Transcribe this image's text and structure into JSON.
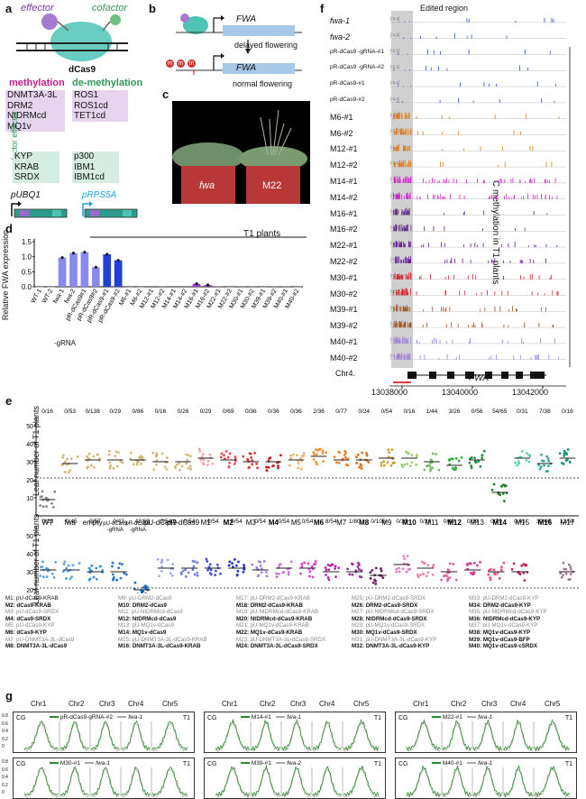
{
  "panel_a": {
    "label": "a",
    "effector": "effector",
    "cofactor": "cofactor",
    "dcas9": "dCas9",
    "methylation_title": "methylation",
    "demethylation_title": "de-methylation",
    "methylation_items": [
      "DNMT3A-3L",
      "DRM2",
      "NtDRMcd",
      "MQ1v"
    ],
    "demethylation_items": [
      "ROS1",
      "ROS1cd",
      "TET1cd"
    ],
    "cofactor_effector_label": "cofactor effector",
    "cofactor_items_left": [
      "KYP",
      "KRAB",
      "SRDX"
    ],
    "cofactor_items_right": [
      "p300",
      "IBM1",
      "IBM1cd"
    ],
    "promoter_left": "pUBQ1",
    "promoter_right": "pRPS5A"
  },
  "panel_b": {
    "label": "b",
    "gene": "FWA",
    "top_text": "delayed flowering",
    "bottom_text": "normal flowering",
    "m_mark": "m"
  },
  "panel_c": {
    "label": "c",
    "left_pot": "fwa",
    "right_pot": "M22"
  },
  "panel_d": {
    "label": "d",
    "ylabel": "Relative FWA expression",
    "t1_label": "T1 plants",
    "neg_label": "-gRNA",
    "yticks": [
      "0.0",
      "0.5",
      "1.0",
      "1.5"
    ],
    "categories": [
      "WT-1",
      "WT-2",
      "fwa-1",
      "fwa-2",
      "pR-dCas9#1",
      "pR-dCas9#2",
      "pR-dCas9-#1",
      "pR-dCas9-#2",
      "M6-#1",
      "M6-#2",
      "M12-#1",
      "M12-#2",
      "M14-#1",
      "M14-#2",
      "M16-#1",
      "M16-#2",
      "M22-#1",
      "M22-#2",
      "M30-#1",
      "M30-#2",
      "M39-#1",
      "M39-#2",
      "M40-#1",
      "M40-#2"
    ],
    "values": [
      0.0,
      0.0,
      0.97,
      1.12,
      1.15,
      0.65,
      1.08,
      0.88,
      0.0,
      0.0,
      0.02,
      0.01,
      0.02,
      0.02,
      0.1,
      0.06,
      0.01,
      0.0,
      0.01,
      0.01,
      0.0,
      0.01,
      0.01,
      0.0
    ]
  },
  "panel_e": {
    "label": "e",
    "ylabel": "Leaf number of T1 plants",
    "yticks": [
      "10",
      "20",
      "30",
      "40",
      "50"
    ],
    "row1": {
      "categories": [
        "WT",
        "fwa",
        "empty",
        "pU-dCas9 -gRNA",
        "pR-dCas9 -gRNA",
        "pU-dCas9",
        "pR-dCas9",
        "M1",
        "M2",
        "M3",
        "M4",
        "M5",
        "M6",
        "M7",
        "M8",
        "M9",
        "M10",
        "M11",
        "M12",
        "M13",
        "M14",
        "M15",
        "M16",
        "M17"
      ],
      "counts": [
        "0/16",
        "0/53",
        "0/138",
        "0/29",
        "0/86",
        "0/16",
        "0/26",
        "0/29",
        "0/69",
        "0/36",
        "0/36",
        "0/36",
        "2/36",
        "0/77",
        "0/24",
        "0/54",
        "0/16",
        "1/44",
        "3/26",
        "0/56",
        "54/65",
        "0/31",
        "7/38",
        "0/16"
      ],
      "means": [
        9,
        29,
        31,
        31,
        31,
        30,
        30,
        32,
        31,
        30,
        30,
        31,
        33,
        31,
        31,
        32,
        32,
        30,
        28,
        31,
        13,
        32,
        29,
        32
      ]
    },
    "row2": {
      "categories": [
        "M18",
        "M19",
        "M20",
        "M21",
        "M22",
        "M23",
        "M24",
        "M25",
        "M26",
        "M27",
        "M28",
        "M29",
        "M30",
        "M31",
        "M32",
        "M33",
        "M34",
        "M35",
        "M36",
        "M37",
        "M38",
        "M39",
        "M40"
      ],
      "counts": [
        "0/23",
        "0/45",
        "0/57",
        "0/43",
        "42/69",
        "0/54",
        "0/54",
        "0/54",
        "0/54",
        "0/54",
        "0/54",
        "0/54",
        "8/54",
        "1/80",
        "0/105",
        "0/15",
        "0/26",
        "0/40",
        "0/39",
        "0/79",
        "0/41",
        "39/46",
        "12/54"
      ],
      "means": [
        31,
        31,
        30,
        30,
        20,
        32,
        32,
        32,
        32,
        31,
        32,
        32,
        30,
        30,
        28,
        34,
        32,
        30,
        31,
        30,
        30,
        12,
        30
      ]
    }
  },
  "legend": {
    "col1": [
      "M1: pU-dCas9-KRAB",
      "M2: dCas9-KRAB",
      "M3: pU-dCas9-SRDX",
      "M4: dCas9-SRDX",
      "M5: pU-dCas9-KYP",
      "M6: dCas9-KYP",
      "M7: pU-DNMT3A-3L-dCas9",
      "M8: DNMT3A-3L-dCas9"
    ],
    "col2": [
      "M9: pU-DRM2-dCas9",
      "M10: DRM2-dCas9",
      "M11: pU-NtDRMcd-dCas9",
      "M12: NtDRMcd-dCas9",
      "M13: pU-MQ1v-dCas9",
      "M14: MQ1v-dCas9",
      "M15: pU-DNMT3A-3L-dCas9-KRAB",
      "M16: DNMT3A-3L-dCas9-KRAB"
    ],
    "col3": [
      "M17: pU-DRM2-dCas9-KRAB",
      "M18: DRM2-dCas9-KRAB",
      "M19: pU-NtDRMcd-dCas9-KRAB",
      "M20: NtDRMcd-dCas9-KRAB",
      "M21: pU-MQ1v-dCas9-KRAB",
      "M22: MQ1v-dCas9-KRAB",
      "M23: pU-DNMT3A-3L-dCas9-SRDX",
      "M24: DNMT3A-3L-dCas9-SRDX"
    ],
    "col4": [
      "M25: pU-DRM2-dCas9-SRDX",
      "M26: DRM2-dCas9-SRDX",
      "M27: pU-NtDRMcd-dCas9-SRDX",
      "M28: NtDRMcd-dCas9-SRDX",
      "M29: pU-MQ1v-dCas9-SRDX",
      "M30: MQ1v-dCas9-SRDX",
      "M31: pU-DNMT3A-3L-dCas9-KYP",
      "M32: DNMT3A-3L-dCas9-KYP"
    ],
    "col5": [
      "M33: pU-DRM2-dCas9-KYP",
      "M34: DRM2-dCas9-KYP",
      "M35: pU-NtDRMcd-dCas9-KYP",
      "M36: NtDRMcd-dCas9-KYP",
      "M37: pU-MQ1v-dCas9-KYP",
      "M38: MQ1v-dCas9-KYP",
      "M39: MQ1v-dCas9-BFP",
      "M40: MQ1v-dCas9-cSRDX"
    ]
  },
  "panel_f": {
    "label": "f",
    "edited_region": "Edited region",
    "side_label": "C methylation in T1 plants",
    "chrom": "Chr4.",
    "gene": "FWA",
    "range_tag": "[-1,1]",
    "xticks": [
      "13038000",
      "13040000",
      "13042000"
    ],
    "tracks": [
      "fwa-1",
      "fwa-2",
      "pR-dCas9 -gRNA-#1",
      "pR-dCas9 -gRNA-#2",
      "pR-dCas9-#1",
      "pR-dCas9-#2",
      "M6-#1",
      "M6-#2",
      "M12-#1",
      "M12-#2",
      "M14-#1",
      "M14-#2",
      "M16-#1",
      "M16-#2",
      "M22-#1",
      "M22-#2",
      "M30-#1",
      "M30-#2",
      "M39-#1",
      "M39-#2",
      "M40-#1",
      "M40-#2"
    ],
    "colors": [
      "#1d4fd8",
      "#1d4fd8",
      "#1d4fd8",
      "#1d4fd8",
      "#1d4fd8",
      "#1d4fd8",
      "#e07a10",
      "#e07a10",
      "#e07a10",
      "#e07a10",
      "#d020d0",
      "#d020d0",
      "#5b2a8a",
      "#5b2a8a",
      "#6a1a9a",
      "#6a1a9a",
      "#d0202a",
      "#d0202a",
      "#a0501a",
      "#a0501a",
      "#a080e0",
      "#a080e0"
    ]
  },
  "panel_g": {
    "label": "g",
    "chrs": [
      "Chr1",
      "Chr2",
      "Chr3",
      "Chr4",
      "Chr5"
    ],
    "cg": "CG",
    "t1": "T1",
    "yticks": [
      "0.8",
      "0.6",
      "0.4",
      "0.2",
      "0"
    ],
    "panels": [
      {
        "sample": "pR-dCas9-gRNA-#2",
        "ref": "fwa-1"
      },
      {
        "sample": "M14-#1",
        "ref": "fwa-1"
      },
      {
        "sample": "M22-#1",
        "ref": "fwa-1"
      },
      {
        "sample": "M30-#1",
        "ref": "fwa-1"
      },
      {
        "sample": "M39-#1",
        "ref": "fwa-2"
      },
      {
        "sample": "M40-#1",
        "ref": "fwa-1"
      }
    ]
  }
}
